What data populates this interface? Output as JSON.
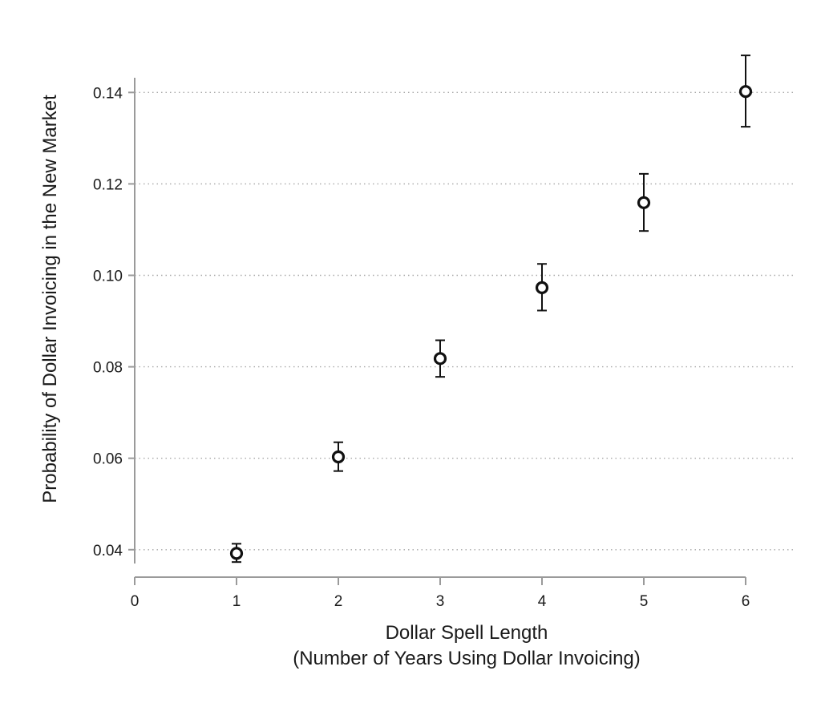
{
  "chart_data": {
    "type": "scatter",
    "title": "",
    "xlabel": [
      "Dollar Spell Length",
      "(Number of Years Using Dollar Invoicing)"
    ],
    "ylabel": "Probability of Dollar Invoicing in the New Market",
    "x_ticks": [
      "0",
      "1",
      "2",
      "3",
      "4",
      "5",
      "6"
    ],
    "y_ticks": [
      "0.04",
      "0.06",
      "0.08",
      "0.10",
      "0.12",
      "0.14"
    ],
    "xlim": [
      0,
      6
    ],
    "ylim": [
      0.034,
      0.1497
    ],
    "grid": "horizontal-dotted",
    "legend": "none",
    "colors": {
      "marker": "#111111",
      "axis": "#9a9a9a",
      "grid": "#a8a8a8"
    },
    "points": [
      {
        "x": 1,
        "y": 0.0392,
        "ci_low": 0.0373,
        "ci_high": 0.0413
      },
      {
        "x": 2,
        "y": 0.0603,
        "ci_low": 0.0572,
        "ci_high": 0.0635
      },
      {
        "x": 3,
        "y": 0.0818,
        "ci_low": 0.0778,
        "ci_high": 0.0858
      },
      {
        "x": 4,
        "y": 0.0973,
        "ci_low": 0.0923,
        "ci_high": 0.1025
      },
      {
        "x": 5,
        "y": 0.1159,
        "ci_low": 0.1097,
        "ci_high": 0.1222
      },
      {
        "x": 6,
        "y": 0.1402,
        "ci_low": 0.1325,
        "ci_high": 0.1481
      }
    ]
  }
}
